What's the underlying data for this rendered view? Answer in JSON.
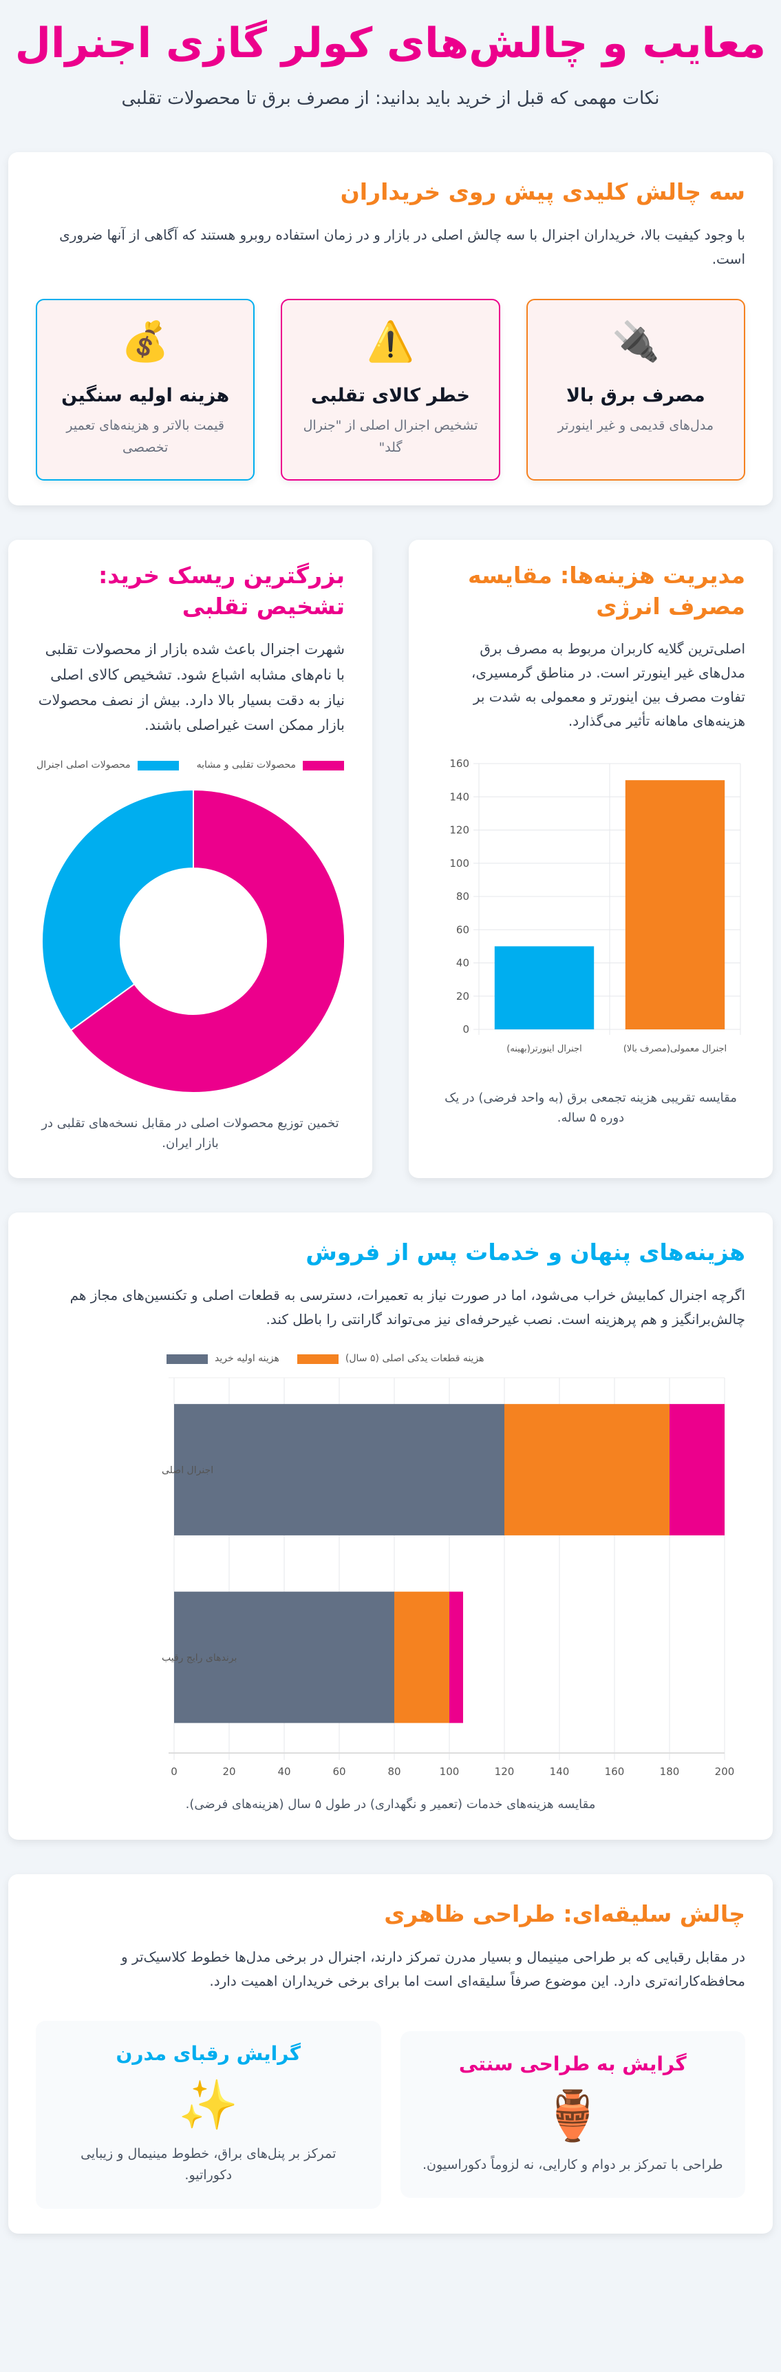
{
  "header": {
    "title": "معایب و چالش‌های کولر گازی اجنرال",
    "subtitle": "نکات مهمی که قبل از خرید باید بدانید: از مصرف برق تا محصولات تقلبی"
  },
  "colors": {
    "pink": "#ec008c",
    "orange": "#f58220",
    "blue": "#00aeef",
    "slate": "#627085"
  },
  "challenges": {
    "title": "سه چالش کلیدی پیش روی خریداران",
    "text": "با وجود کیفیت بالا، خریداران اجنرال با سه چالش اصلی در بازار و در زمان استفاده روبرو هستند که آگاهی از آنها ضروری است.",
    "items": [
      {
        "icon": "electric-plug-icon",
        "glyph": "🔌",
        "title": "مصرف برق بالا",
        "desc": "مدل‌های قدیمی و غیر اینورتر",
        "border": "#f58220"
      },
      {
        "icon": "warning-icon",
        "glyph": "⚠️",
        "title": "خطر کالای تقلبی",
        "desc": "تشخیص اجنرال اصلی از \"جنرال گلد\"",
        "border": "#ec008c"
      },
      {
        "icon": "money-bag-icon",
        "glyph": "💰",
        "title": "هزینه اولیه سنگین",
        "desc": "قیمت بالاتر و هزینه‌های تعمیر تخصصی",
        "border": "#00aeef"
      }
    ]
  },
  "energy": {
    "title": "مدیریت هزینه‌ها: مقایسه مصرف انرژی",
    "text": "اصلی‌ترین گلایه کاربران مربوط به مصرف برق مدل‌های غیر اینورتر است. در مناطق گرمسیری، تفاوت مصرف بین اینورتر و معمولی به شدت بر هزینه‌های ماهانه تأثیر می‌گذارد.",
    "caption": "مقایسه تقریبی هزینه تجمعی برق (به واحد فرضی) در یک دوره ۵ ساله."
  },
  "fake": {
    "title": "بزرگترین ریسک خرید: تشخیص تقلبی",
    "text": "شهرت اجنرال باعث شده بازار از محصولات تقلبی با نام‌های مشابه اشباع شود. تشخیص کالای اصلی نیاز به دقت بسیار بالا دارد. بیش از نصف محصولات بازار ممکن است غیراصلی باشند.",
    "caption": "تخمین توزیع محصولات اصلی در مقابل نسخه‌های تقلبی در بازار ایران."
  },
  "service": {
    "title": "هزینه‌های پنهان و خدمات پس از فروش",
    "text": "اگرچه اجنرال کمابیش خراب می‌شود، اما در صورت نیاز به تعمیرات، دسترسی به قطعات اصلی و تکنسین‌های مجاز هم چالش‌برانگیز و هم پرهزینه است. نصب غیرحرفه‌ای نیز می‌تواند گارانتی را باطل کند.",
    "caption": "مقایسه هزینه‌های خدمات (تعمیر و نگهداری) در طول ۵ سال (هزینه‌های فرضی)."
  },
  "design": {
    "title": "چالش سلیقه‌ای: طراحی ظاهری",
    "text": "در مقابل رقبایی که بر طراحی مینیمال و بسیار مدرن تمرکز دارند، اجنرال در برخی مدل‌ها خطوط کلاسیک‌تر و محافظه‌کارانه‌تری دارد. این موضوع صرفاً سلیقه‌ای است اما برای برخی خریداران اهمیت دارد.",
    "items": [
      {
        "icon": "amphora-icon",
        "glyph": "🏺",
        "title": "گرایش به طراحی سنتی",
        "desc": "طراحی با تمرکز بر دوام و کارایی، نه لزوماً دکوراسیون.",
        "color": "#ec008c"
      },
      {
        "icon": "sparkles-icon",
        "glyph": "✨",
        "title": "گرایش رقبای مدرن",
        "desc": "تمرکز بر پنل‌های براق، خطوط مینیمال و زیبایی دکوراتیو.",
        "color": "#00aeef"
      }
    ]
  },
  "chart_data": [
    {
      "type": "bar",
      "categories": [
        "اجنرال اینورتر(بهینه)",
        "اجنرال معمولی(مصرف بالا)"
      ],
      "values": [
        50,
        150
      ],
      "colors": [
        "#00aeef",
        "#f58220"
      ],
      "ylim": [
        0,
        160
      ],
      "yticks": [
        0,
        20,
        40,
        60,
        80,
        100,
        120,
        140,
        160
      ],
      "grid": true
    },
    {
      "type": "pie",
      "donut": true,
      "categories": [
        "محصولات تقلبی و مشابه",
        "محصولات اصلی اجنرال"
      ],
      "values": [
        65,
        35
      ],
      "colors": [
        "#ec008c",
        "#00aeef"
      ],
      "legend": "top"
    },
    {
      "type": "bar",
      "orientation": "horizontal",
      "stacked": true,
      "categories": [
        "اجنرال اصلی",
        "برندهای رایج رقیب"
      ],
      "series": [
        {
          "name": "هزینه اولیه خرید",
          "values": [
            120,
            80
          ],
          "color": "#627085"
        },
        {
          "name": "هزینه قطعات یدکی اصلی (۵ سال)",
          "values": [
            60,
            20
          ],
          "color": "#f58220"
        },
        {
          "values": [
            20,
            5
          ],
          "color": "#ec008c"
        }
      ],
      "xlim": [
        0,
        200
      ],
      "xticks": [
        0,
        20,
        40,
        60,
        80,
        100,
        120,
        140,
        160,
        180,
        200
      ],
      "grid": true,
      "legend": "top"
    }
  ]
}
